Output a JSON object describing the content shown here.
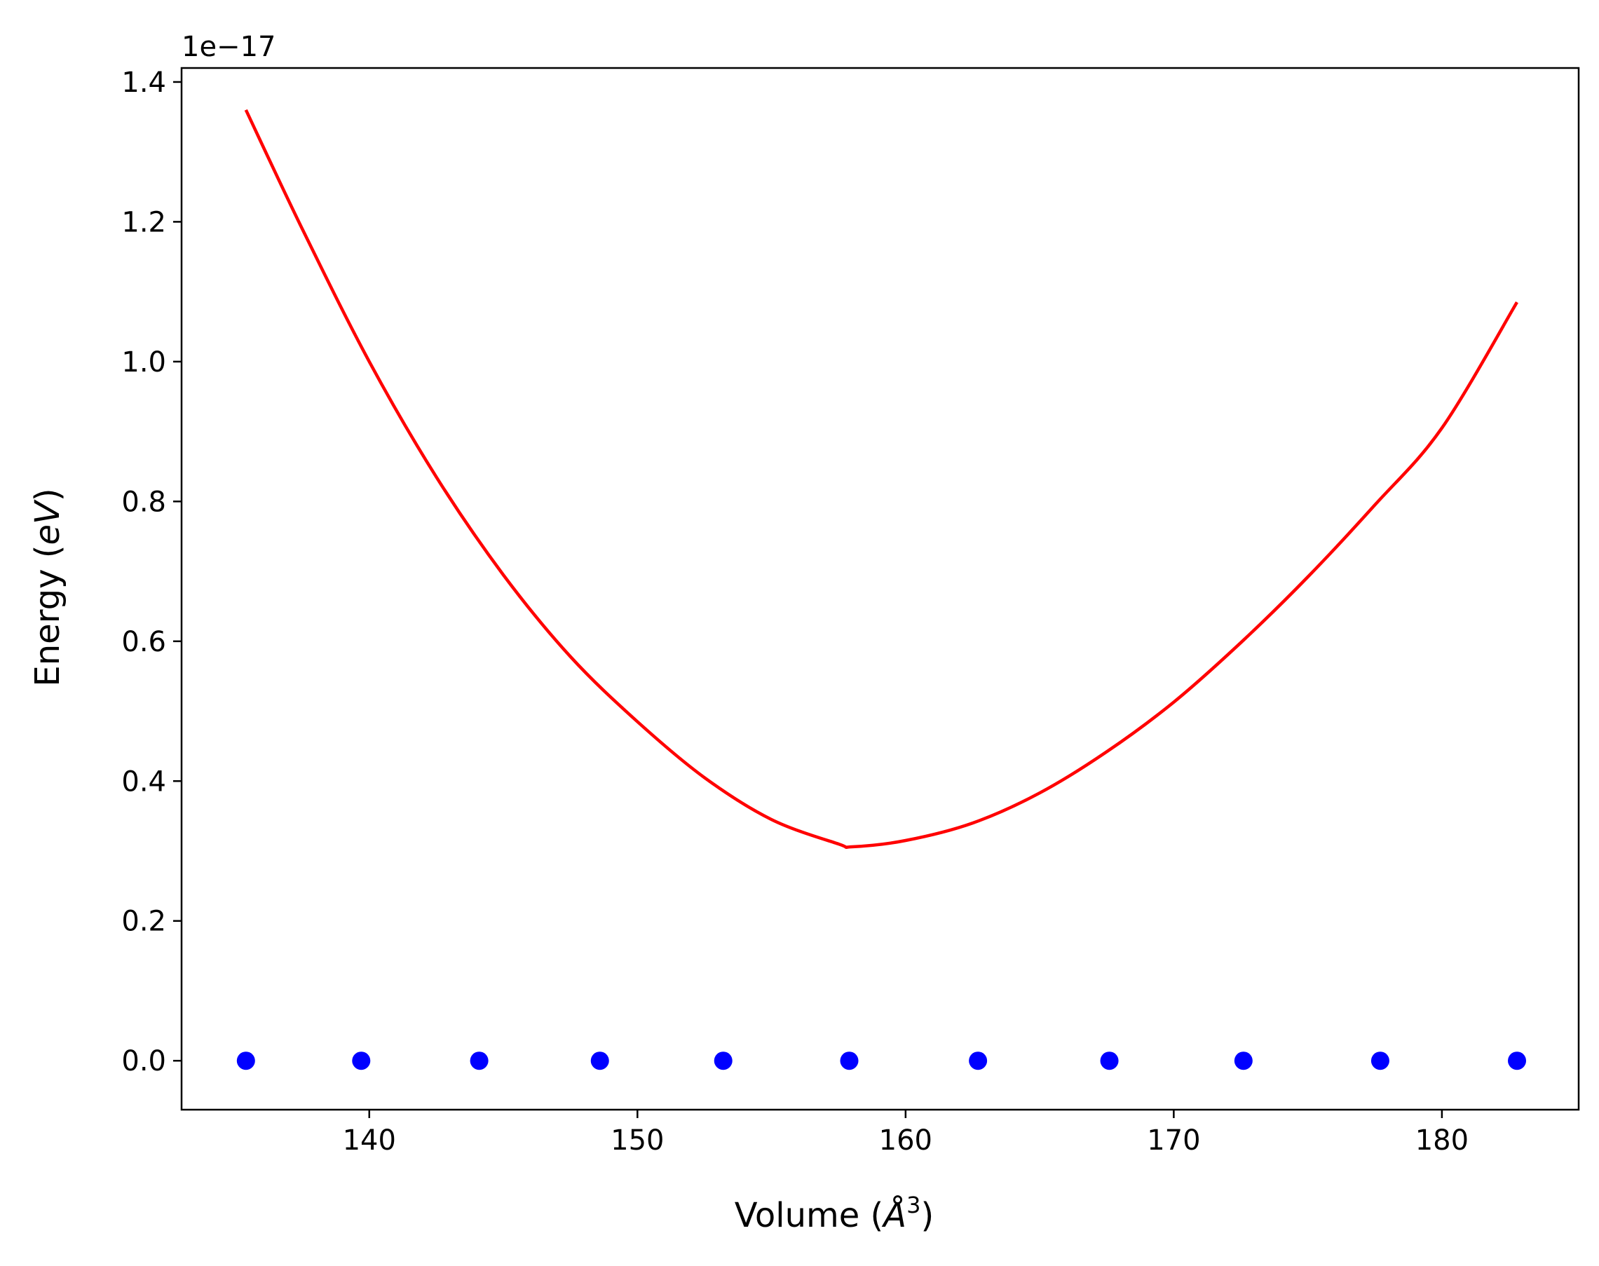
{
  "chart_data": {
    "type": "line",
    "title": "",
    "xlabel": "Volume (Å³)",
    "xlabel_parts": {
      "prefix": "Volume (",
      "symbol": "Å",
      "exponent": "3",
      "suffix": ")"
    },
    "ylabel": "Energy (eV)",
    "ylabel_parts": {
      "prefix": "Energy (",
      "italic": "eV",
      "suffix": ")"
    },
    "y_offset_text": "1e−17",
    "xlim": [
      133,
      185.1
    ],
    "ylim": [
      -0.07,
      1.42
    ],
    "xticks": [
      140,
      150,
      160,
      170,
      180
    ],
    "xtick_labels": [
      "140",
      "150",
      "160",
      "170",
      "180"
    ],
    "yticks": [
      0.0,
      0.2,
      0.4,
      0.6,
      0.8,
      1.0,
      1.2,
      1.4
    ],
    "ytick_labels": [
      "0.0",
      "0.2",
      "0.4",
      "0.6",
      "0.8",
      "1.0",
      "1.2",
      "1.4"
    ],
    "grid": false,
    "legend": "none",
    "series": [
      {
        "kind": "scatter",
        "color": "#0000ff",
        "x": [
          135.4,
          139.7,
          144.1,
          148.6,
          153.2,
          157.9,
          162.7,
          167.6,
          172.6,
          177.7,
          182.8
        ],
        "y": [
          0,
          0,
          0,
          0,
          0,
          0,
          0,
          0,
          0,
          0,
          0
        ]
      },
      {
        "kind": "line",
        "color": "#ff0000",
        "x": [
          135.4,
          137.5,
          140,
          142.5,
          145,
          147.5,
          150,
          152.5,
          155,
          157.5,
          158.0,
          160,
          162.5,
          165,
          167.5,
          170,
          172.5,
          175,
          177.5,
          180,
          182.8
        ],
        "y": [
          1.36,
          1.19,
          1.0,
          0.835,
          0.695,
          0.578,
          0.485,
          0.405,
          0.345,
          0.31,
          0.306,
          0.315,
          0.34,
          0.383,
          0.442,
          0.513,
          0.598,
          0.692,
          0.795,
          0.905,
          1.085
        ]
      }
    ]
  }
}
